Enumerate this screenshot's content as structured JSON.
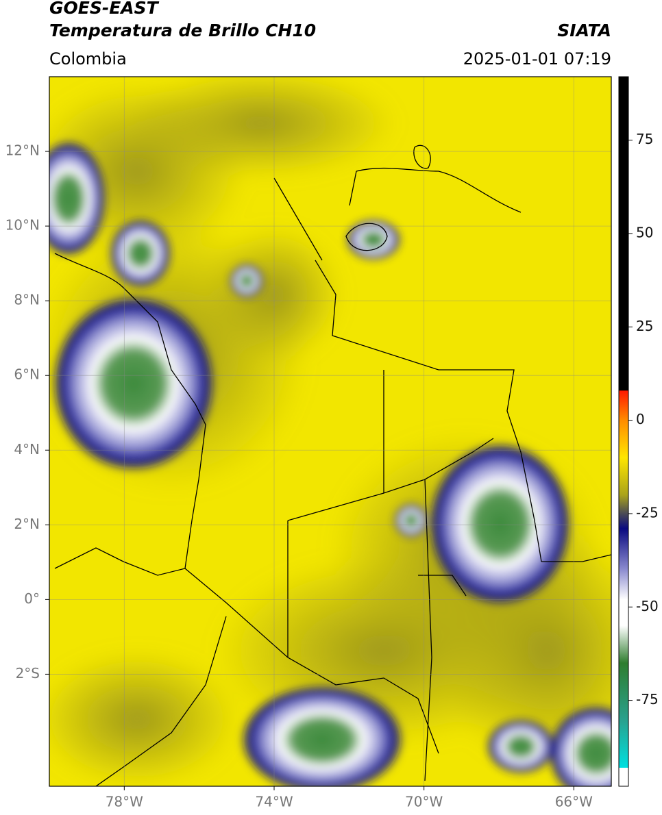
{
  "header": {
    "title": "GOES-EAST",
    "subtitle": "Temperatura de Brillo CH10",
    "source": "SIATA",
    "region": "Colombia",
    "timestamp": "2025-01-01 07:19"
  },
  "map": {
    "xlim": [
      -80,
      -65
    ],
    "ylim": [
      -5,
      14
    ],
    "xticks": [
      {
        "value": -78,
        "label": "78°W"
      },
      {
        "value": -74,
        "label": "74°W"
      },
      {
        "value": -70,
        "label": "70°W"
      },
      {
        "value": -66,
        "label": "66°W"
      }
    ],
    "yticks": [
      {
        "value": 12,
        "label": "12°N"
      },
      {
        "value": 10,
        "label": "10°N"
      },
      {
        "value": 8,
        "label": "8°N"
      },
      {
        "value": 6,
        "label": "6°N"
      },
      {
        "value": 4,
        "label": "4°N"
      },
      {
        "value": 2,
        "label": "2°N"
      },
      {
        "value": 0,
        "label": "0°"
      },
      {
        "value": -2,
        "label": "2°S"
      }
    ],
    "grid": true
  },
  "colorbar": {
    "lim": [
      -98,
      92
    ],
    "ticks": [
      75,
      50,
      25,
      0,
      -25,
      -50,
      -75
    ],
    "stops": [
      {
        "value": 92,
        "color": "#000000"
      },
      {
        "value": 8,
        "color": "#000000"
      },
      {
        "value": 7.9,
        "color": "#ff1a00"
      },
      {
        "value": 0,
        "color": "#ff8c00"
      },
      {
        "value": -10,
        "color": "#ffe600"
      },
      {
        "value": -20,
        "color": "#aaa31a"
      },
      {
        "value": -25,
        "color": "#4a4a55"
      },
      {
        "value": -29,
        "color": "#0a0a80"
      },
      {
        "value": -40,
        "color": "#8c8cd0"
      },
      {
        "value": -48,
        "color": "#ffffff"
      },
      {
        "value": -55,
        "color": "#ffffff"
      },
      {
        "value": -65,
        "color": "#2e7d2e"
      },
      {
        "value": -80,
        "color": "#2aa08c"
      },
      {
        "value": -93,
        "color": "#00e0e0"
      },
      {
        "value": -93.1,
        "color": "#ffffff"
      },
      {
        "value": -98,
        "color": "#ffffff"
      }
    ]
  }
}
